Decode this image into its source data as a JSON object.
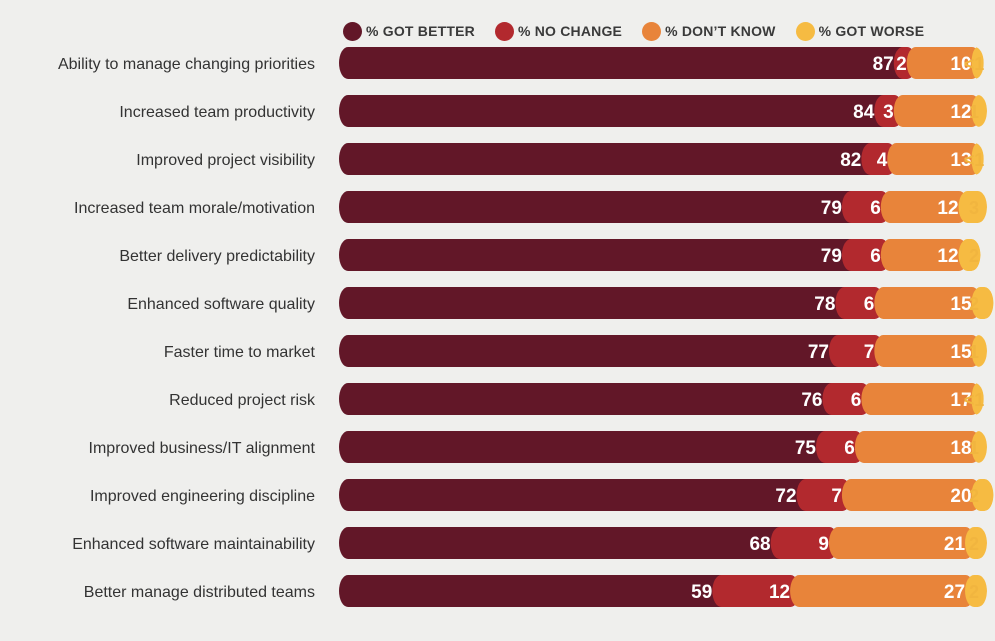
{
  "colors": {
    "got_better": "#621728",
    "no_change": "#b2292e",
    "dont_know": "#e8843a",
    "got_worse": "#f6bb42",
    "worse_text": "#f1b53f",
    "label_text": "#333333",
    "background": "#efefed"
  },
  "legend": [
    {
      "label": "% GOT BETTER",
      "color": "#621728"
    },
    {
      "label": "% NO CHANGE",
      "color": "#b2292e"
    },
    {
      "label": "% DON’T KNOW",
      "color": "#e8843a"
    },
    {
      "label": "% GOT WORSE",
      "color": "#f6bb42"
    }
  ],
  "chart_data": {
    "type": "bar",
    "orientation": "horizontal",
    "stacked": true,
    "legend_position": "top",
    "grid": false,
    "title": "",
    "xlabel": "",
    "ylabel": "",
    "categories": [
      "Ability to manage changing priorities",
      "Increased team productivity",
      "Improved project visibility",
      "Increased team morale/motivation",
      "Better delivery predictability",
      "Enhanced software quality",
      "Faster time to market",
      "Reduced project risk",
      "Improved business/IT alignment",
      "Improved engineering discipline",
      "Enhanced software maintainability",
      "Better manage distributed teams"
    ],
    "series": [
      {
        "name": "% GOT BETTER",
        "values": [
          87,
          84,
          82,
          79,
          79,
          78,
          77,
          76,
          75,
          72,
          68,
          59
        ]
      },
      {
        "name": "% NO CHANGE",
        "values": [
          2,
          3,
          4,
          6,
          6,
          6,
          7,
          6,
          6,
          7,
          9,
          12
        ]
      },
      {
        "name": "% DON’T KNOW",
        "values": [
          10,
          12,
          13,
          12,
          12,
          15,
          15,
          17,
          18,
          20,
          21,
          27
        ]
      },
      {
        "name": "% GOT WORSE",
        "values": [
          0.5,
          1,
          0.5,
          3,
          2,
          2,
          1,
          0.5,
          1,
          2,
          2,
          2
        ]
      }
    ],
    "got_worse_labels": [
      "<1",
      "1",
      "<1",
      "3",
      "2",
      "2",
      "1",
      "<1",
      "1",
      "2",
      "2",
      "2"
    ]
  }
}
